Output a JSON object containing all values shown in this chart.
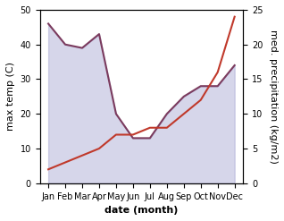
{
  "months": [
    "Jan",
    "Feb",
    "Mar",
    "Apr",
    "May",
    "Jun",
    "Jul",
    "Aug",
    "Sep",
    "Oct",
    "Nov",
    "Dec"
  ],
  "max_temp": [
    46,
    40,
    39,
    43,
    20,
    13,
    13,
    20,
    25,
    28,
    28,
    34
  ],
  "precipitation": [
    2,
    3,
    4,
    5,
    7,
    7,
    8,
    8,
    10,
    12,
    16,
    24
  ],
  "temp_color": "#7B3B5E",
  "precip_color": "#C0392B",
  "fill_color": "#9999CC",
  "fill_alpha": 0.4,
  "temp_ylim": [
    0,
    50
  ],
  "precip_ylim": [
    0,
    25
  ],
  "xlabel": "date (month)",
  "ylabel_left": "max temp (C)",
  "ylabel_right": "med. precipitation (kg/m2)",
  "label_fontsize": 8,
  "tick_fontsize": 7
}
